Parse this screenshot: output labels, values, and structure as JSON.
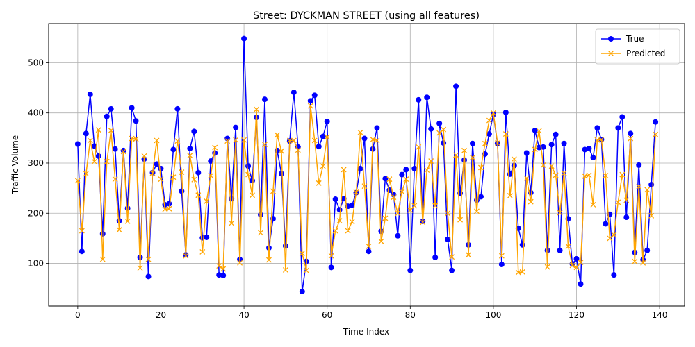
{
  "chart_data": {
    "type": "line",
    "title": "Street: DYCKMAN STREET (using all features)",
    "xlabel": "Time Index",
    "ylabel": "Traffic Volume",
    "xlim": [
      -7,
      146
    ],
    "ylim": [
      15,
      578
    ],
    "xticks": [
      0,
      20,
      40,
      60,
      80,
      100,
      120,
      140
    ],
    "yticks": [
      100,
      200,
      300,
      400,
      500
    ],
    "grid": true,
    "legend_position": "top-right",
    "series": [
      {
        "name": "True",
        "color": "#0000ff",
        "marker": "circle",
        "values": [
          338,
          124,
          359,
          437,
          334,
          314,
          159,
          393,
          408,
          328,
          185,
          325,
          210,
          410,
          384,
          112,
          308,
          74,
          281,
          298,
          289,
          217,
          219,
          327,
          408,
          244,
          117,
          329,
          363,
          281,
          151,
          152,
          304,
          320,
          77,
          76,
          349,
          229,
          371,
          108,
          548,
          294,
          265,
          391,
          197,
          427,
          131,
          189,
          325,
          279,
          135,
          344,
          441,
          332,
          44,
          104,
          424,
          435,
          333,
          353,
          383,
          92,
          228,
          207,
          229,
          214,
          216,
          241,
          289,
          349,
          124,
          328,
          370,
          164,
          269,
          246,
          237,
          155,
          277,
          287,
          86,
          289,
          426,
          184,
          431,
          368,
          112,
          379,
          340,
          148,
          86,
          453,
          240,
          306,
          137,
          339,
          226,
          233,
          318,
          358,
          397,
          339,
          98,
          401,
          278,
          295,
          170,
          137,
          320,
          241,
          365,
          331,
          332,
          126,
          337,
          357,
          126,
          339,
          189,
          99,
          109,
          59,
          327,
          329,
          311,
          370,
          347,
          179,
          198,
          77,
          370,
          392,
          192,
          359,
          122,
          296,
          107,
          126,
          257,
          382
        ]
      },
      {
        "name": "Predicted",
        "color": "#ffa500",
        "marker": "x",
        "values": [
          265,
          165,
          279,
          345,
          303,
          366,
          108,
          303,
          365,
          268,
          167,
          323,
          184,
          349,
          348,
          91,
          314,
          108,
          280,
          345,
          268,
          208,
          209,
          272,
          344,
          282,
          115,
          315,
          267,
          236,
          123,
          224,
          275,
          331,
          95,
          89,
          344,
          180,
          346,
          101,
          346,
          277,
          236,
          407,
          161,
          337,
          107,
          244,
          356,
          324,
          87,
          345,
          345,
          326,
          120,
          86,
          414,
          345,
          260,
          294,
          352,
          115,
          165,
          185,
          287,
          165,
          183,
          242,
          361,
          254,
          134,
          347,
          345,
          144,
          190,
          268,
          232,
          200,
          243,
          268,
          206,
          215,
          332,
          182,
          286,
          304,
          215,
          360,
          367,
          200,
          113,
          316,
          187,
          325,
          117,
          311,
          204,
          291,
          339,
          385,
          400,
          340,
          115,
          358,
          235,
          308,
          82,
          83,
          270,
          223,
          327,
          364,
          296,
          93,
          294,
          276,
          201,
          280,
          134,
          96,
          92,
          102,
          274,
          276,
          217,
          346,
          347,
          275,
          150,
          157,
          222,
          277,
          226,
          349,
          104,
          253,
          101,
          247,
          195,
          357
        ]
      }
    ]
  }
}
